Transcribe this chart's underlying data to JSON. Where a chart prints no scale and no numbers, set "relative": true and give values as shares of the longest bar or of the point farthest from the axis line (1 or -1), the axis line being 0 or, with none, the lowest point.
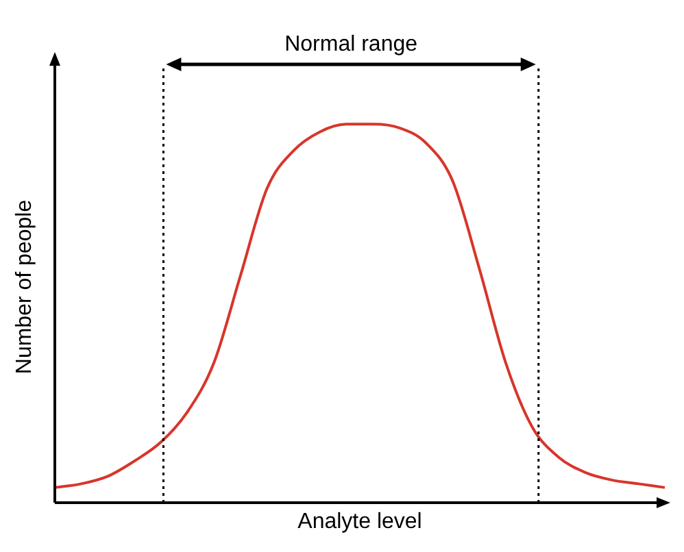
{
  "chart_data": {
    "type": "line",
    "relative": true,
    "xlabel": "Analyte level",
    "ylabel": "Number of people",
    "categories": [
      null,
      null,
      null,
      null,
      null,
      null,
      null,
      null,
      null,
      null,
      null,
      null,
      null,
      null,
      null,
      null,
      null,
      null,
      null,
      null,
      null,
      null,
      null,
      null
    ],
    "series": [
      {
        "color": "#d8352a",
        "values": [
          0.04,
          0.05,
          0.07,
          0.11,
          0.16,
          0.24,
          0.37,
          0.6,
          0.83,
          0.93,
          0.98,
          1.0,
          1.0,
          0.99,
          0.95,
          0.85,
          0.62,
          0.37,
          0.2,
          0.12,
          0.08,
          0.06,
          0.05,
          0.04
        ]
      }
    ],
    "annotations": [
      "Normal range"
    ],
    "marker": "none",
    "tick_labels": false
  }
}
